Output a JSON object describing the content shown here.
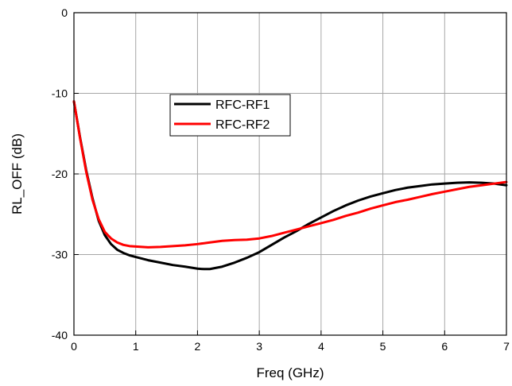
{
  "chart_data": {
    "type": "line",
    "title": "",
    "xlabel": "Freq (GHz)",
    "ylabel": "RL_OFF (dB)",
    "xlim": [
      0,
      7
    ],
    "ylim": [
      -40,
      0
    ],
    "x_ticks": [
      "0",
      "1",
      "2",
      "3",
      "4",
      "5",
      "6",
      "7"
    ],
    "y_ticks": [
      "-40",
      "-30",
      "-20",
      "-10",
      "0"
    ],
    "grid": true,
    "legend_position": "upper-left inside plot",
    "series": [
      {
        "name": "RFC-RF1",
        "color": "#000000",
        "x": [
          0,
          0.1,
          0.2,
          0.3,
          0.4,
          0.5,
          0.6,
          0.7,
          0.8,
          0.9,
          1.0,
          1.2,
          1.4,
          1.6,
          1.8,
          2.0,
          2.1,
          2.2,
          2.4,
          2.6,
          2.8,
          3.0,
          3.2,
          3.4,
          3.6,
          3.8,
          4.0,
          4.2,
          4.4,
          4.6,
          4.8,
          5.0,
          5.2,
          5.4,
          5.6,
          5.8,
          6.0,
          6.2,
          6.4,
          6.6,
          6.8,
          7.0
        ],
        "y": [
          -11.0,
          -15.5,
          -19.6,
          -23.0,
          -25.8,
          -27.6,
          -28.7,
          -29.4,
          -29.8,
          -30.1,
          -30.3,
          -30.7,
          -31.0,
          -31.3,
          -31.5,
          -31.75,
          -31.8,
          -31.8,
          -31.5,
          -31.0,
          -30.4,
          -29.7,
          -28.8,
          -27.9,
          -27.1,
          -26.2,
          -25.4,
          -24.6,
          -23.9,
          -23.3,
          -22.8,
          -22.4,
          -22.0,
          -21.7,
          -21.5,
          -21.3,
          -21.2,
          -21.1,
          -21.05,
          -21.1,
          -21.2,
          -21.4
        ]
      },
      {
        "name": "RFC-RF2",
        "color": "#ff0000",
        "x": [
          0,
          0.1,
          0.2,
          0.3,
          0.4,
          0.5,
          0.6,
          0.7,
          0.8,
          0.9,
          1.0,
          1.2,
          1.4,
          1.6,
          1.8,
          2.0,
          2.2,
          2.4,
          2.6,
          2.8,
          3.0,
          3.2,
          3.4,
          3.6,
          3.8,
          4.0,
          4.2,
          4.4,
          4.6,
          4.8,
          5.0,
          5.2,
          5.4,
          5.6,
          5.8,
          6.0,
          6.2,
          6.4,
          6.6,
          6.8,
          7.0
        ],
        "y": [
          -11.0,
          -15.6,
          -19.8,
          -23.2,
          -25.6,
          -27.2,
          -28.0,
          -28.5,
          -28.8,
          -28.95,
          -29.0,
          -29.1,
          -29.05,
          -28.95,
          -28.85,
          -28.7,
          -28.5,
          -28.3,
          -28.2,
          -28.15,
          -28.0,
          -27.7,
          -27.3,
          -26.9,
          -26.5,
          -26.1,
          -25.7,
          -25.2,
          -24.8,
          -24.3,
          -23.9,
          -23.5,
          -23.2,
          -22.85,
          -22.5,
          -22.2,
          -21.9,
          -21.6,
          -21.4,
          -21.2,
          -21.0
        ]
      }
    ]
  }
}
